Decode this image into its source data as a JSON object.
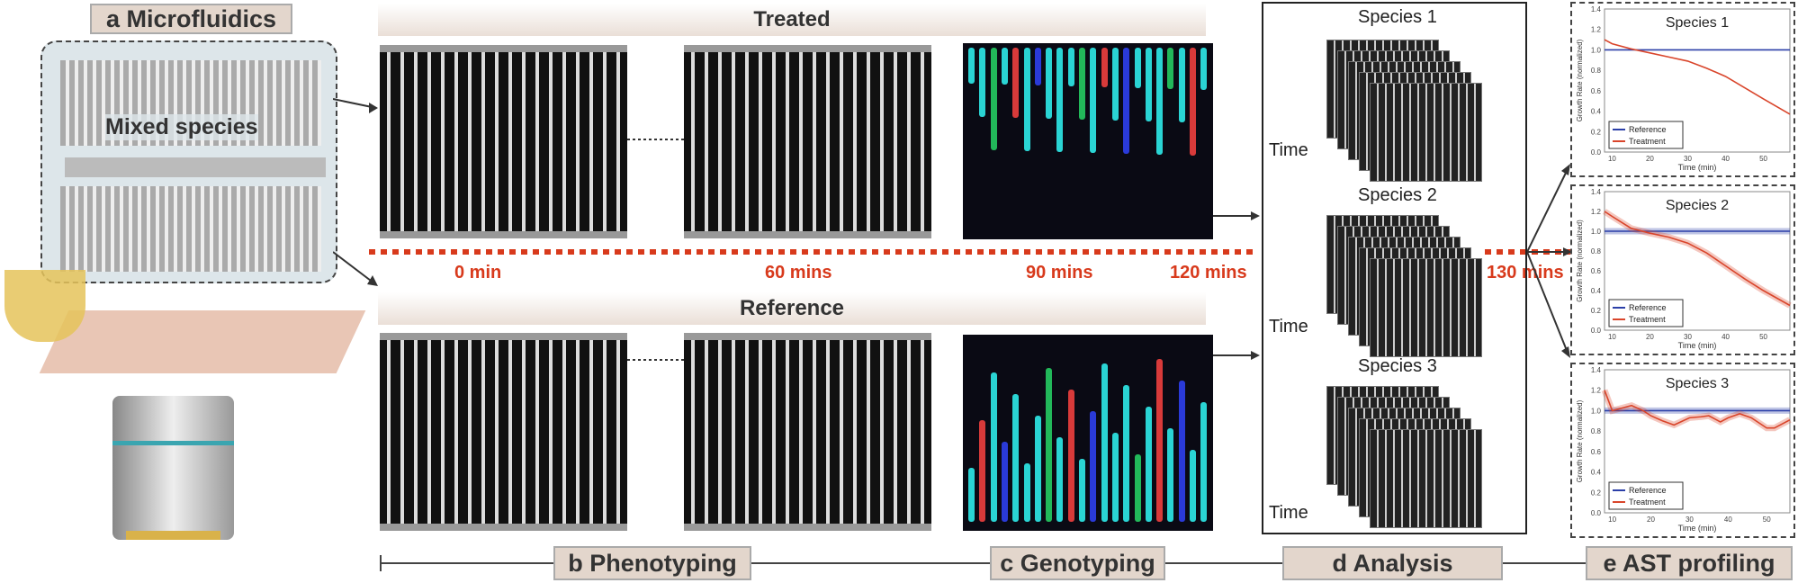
{
  "labels": {
    "a": "a Microfluidics",
    "b": "b Phenotyping",
    "c": "c Genotyping",
    "d": "d Analysis",
    "e": "e AST profiling"
  },
  "panel_a": {
    "mixed": "Mixed species"
  },
  "panel_b": {
    "treated": "Treated",
    "reference": "Reference"
  },
  "times": [
    "0 min",
    "60 mins",
    "90 mins",
    "120 mins",
    "130 mins"
  ],
  "analysis": {
    "species": [
      "Species 1",
      "Species 2",
      "Species 3"
    ],
    "time_label": "Time"
  },
  "colors": {
    "reference": "#2b3fa8",
    "treatment": "#d9452b",
    "timeline": "#d83a1c",
    "label_bg": "#e3d6cc"
  },
  "chart_data": [
    {
      "type": "line",
      "title": "Species 1",
      "xlabel": "Time (min)",
      "ylabel": "Growth Rate (normalized)",
      "xlim": [
        8,
        57
      ],
      "ylim": [
        0,
        1.4
      ],
      "xticks": [
        10,
        20,
        30,
        40,
        50
      ],
      "yticks": [
        "0.0",
        "0.2",
        "0.4",
        "0.6",
        "0.8",
        "1.0",
        "1.2",
        "1.4"
      ],
      "legend": "bottom-left",
      "series": [
        {
          "name": "Reference",
          "x": [
            8,
            57
          ],
          "y": [
            1.0,
            1.0
          ]
        },
        {
          "name": "Treatment",
          "x": [
            8,
            10,
            15,
            20,
            25,
            30,
            35,
            40,
            45,
            50,
            57
          ],
          "y": [
            1.1,
            1.06,
            1.01,
            0.97,
            0.93,
            0.89,
            0.82,
            0.74,
            0.63,
            0.52,
            0.37
          ]
        }
      ]
    },
    {
      "type": "line",
      "title": "Species 2",
      "xlabel": "Time (min)",
      "ylabel": "Growth Rate (normalized)",
      "xlim": [
        8,
        57
      ],
      "ylim": [
        0,
        1.4
      ],
      "xticks": [
        10,
        20,
        30,
        40,
        50
      ],
      "yticks": [
        "0.0",
        "0.2",
        "0.4",
        "0.6",
        "0.8",
        "1.0",
        "1.2",
        "1.4"
      ],
      "legend": "bottom-left",
      "series": [
        {
          "name": "Reference",
          "x": [
            8,
            57
          ],
          "y": [
            1.0,
            1.0
          ]
        },
        {
          "name": "Treatment",
          "x": [
            8,
            10,
            15,
            20,
            25,
            30,
            35,
            40,
            45,
            50,
            57
          ],
          "y": [
            1.2,
            1.15,
            1.03,
            0.98,
            0.94,
            0.88,
            0.78,
            0.65,
            0.52,
            0.4,
            0.25
          ]
        }
      ]
    },
    {
      "type": "line",
      "title": "Species 3",
      "xlabel": "Time (min)",
      "ylabel": "Growth Rate (normalized)",
      "xlim": [
        8,
        56
      ],
      "ylim": [
        0,
        1.4
      ],
      "xticks": [
        10,
        20,
        30,
        40,
        50
      ],
      "yticks": [
        "0.0",
        "0.2",
        "0.4",
        "0.6",
        "0.8",
        "1.0",
        "1.2",
        "1.4"
      ],
      "legend": "bottom-left",
      "series": [
        {
          "name": "Reference",
          "x": [
            8,
            56
          ],
          "y": [
            1.0,
            1.0
          ]
        },
        {
          "name": "Treatment",
          "x": [
            8,
            10,
            13,
            15,
            18,
            20,
            23,
            26,
            30,
            33,
            35,
            38,
            40,
            43,
            46,
            50,
            52,
            56
          ],
          "y": [
            1.2,
            1.0,
            1.03,
            1.05,
            1.0,
            0.95,
            0.9,
            0.86,
            0.93,
            0.94,
            0.95,
            0.89,
            0.93,
            0.97,
            0.93,
            0.83,
            0.83,
            0.91
          ]
        }
      ]
    }
  ]
}
